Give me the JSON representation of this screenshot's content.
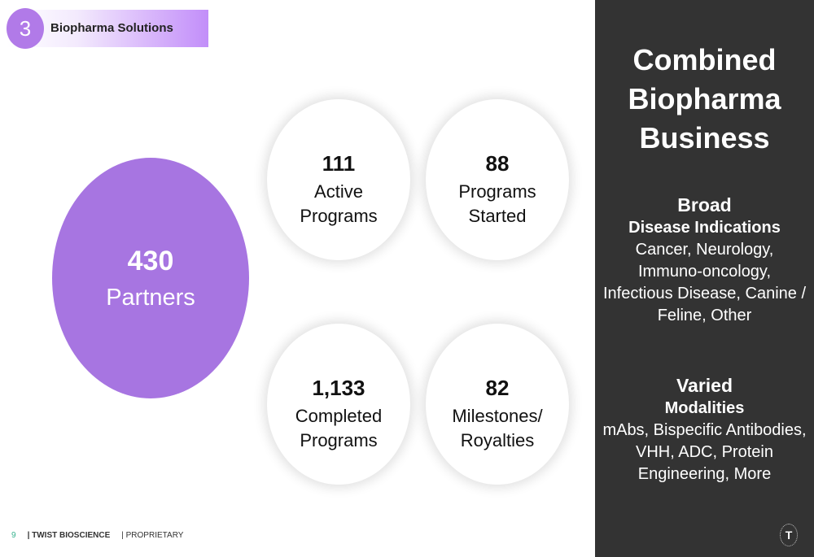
{
  "header": {
    "section_number": "3",
    "section_title": "Biopharma Solutions"
  },
  "partners": {
    "value": "430",
    "label": "Partners"
  },
  "stats": [
    {
      "value": "111",
      "label": "Active\nPrograms"
    },
    {
      "value": "88",
      "label": "Programs\nStarted"
    },
    {
      "value": "1,133",
      "label": "Completed\nPrograms"
    },
    {
      "value": "82",
      "label": "Milestones/\nRoyalties"
    }
  ],
  "panel": {
    "title": "Combined\nBiopharma\nBusiness",
    "groups": [
      {
        "head": "Broad",
        "sub": "Disease Indications",
        "body": "Cancer, Neurology,\nImmuno-oncology,\nInfectious Disease, Canine /\nFeline, Other"
      },
      {
        "head": "Varied",
        "sub": "Modalities",
        "body": "mAbs, Bispecific Antibodies,\nVHH, ADC, Protein\nEngineering, More"
      }
    ],
    "logo_letter": "T"
  },
  "footer": {
    "page_number": "9",
    "company": "| TWIST BIOSCIENCE",
    "label": "| PROPRIETARY"
  },
  "colors": {
    "accent_purple": "#a775e1",
    "panel_dark": "#333333",
    "page_number_green": "#37b38f"
  }
}
